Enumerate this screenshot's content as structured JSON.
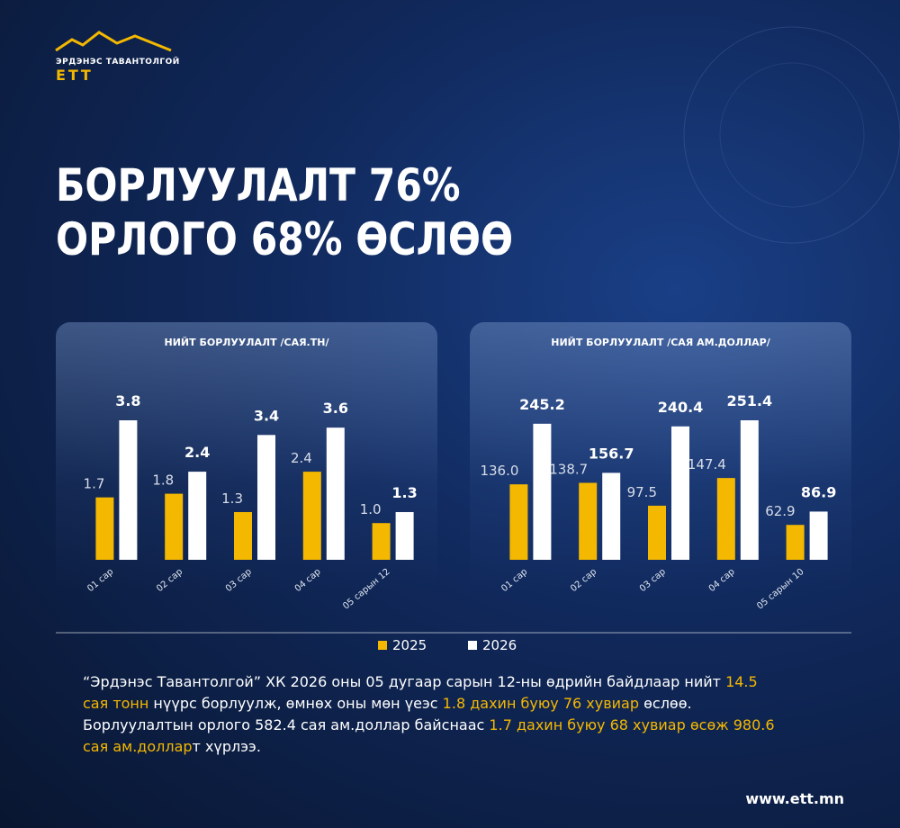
{
  "logo": {
    "name": "ЭРДЭНЭС ТАВАНТОЛГОЙ",
    "mark": "ЕТТ"
  },
  "headline": [
    "БОРЛУУЛАЛТ 76%",
    "ОРЛОГО 68% ӨСЛӨӨ"
  ],
  "chart_data": [
    {
      "type": "bar",
      "title": "НИЙТ БОРЛУУЛАЛТ /САЯ.ТН/",
      "categories": [
        "01 сар",
        "02 сар",
        "03 сар",
        "04 сар",
        "05 сарын 12"
      ],
      "series": [
        {
          "name": "2025",
          "color": "#f5b800",
          "values": [
            1.7,
            1.8,
            1.3,
            2.4,
            1.0
          ],
          "value_labels": [
            "1.7",
            "1.8",
            "1.3",
            "2.4",
            "1.0"
          ]
        },
        {
          "name": "2026",
          "color": "#ffffff",
          "values": [
            3.8,
            2.4,
            3.4,
            3.6,
            1.3
          ],
          "value_labels": [
            "3.8",
            "2.4",
            "3.4",
            "3.6",
            "1.3"
          ]
        }
      ]
    },
    {
      "type": "bar",
      "title": "НИЙТ БОРЛУУЛАЛТ /САЯ АМ.ДОЛЛАР/",
      "categories": [
        "01 сар",
        "02 сар",
        "03 сар",
        "04 сар",
        "05 сарын 10"
      ],
      "series": [
        {
          "name": "2025",
          "color": "#f5b800",
          "values": [
            136.0,
            138.7,
            97.5,
            147.4,
            62.9
          ],
          "value_labels": [
            "136.0",
            "138.7",
            "97.5",
            "147.4",
            "62.9"
          ]
        },
        {
          "name": "2026",
          "color": "#ffffff",
          "values": [
            245.2,
            156.7,
            240.4,
            251.4,
            86.9
          ],
          "value_labels": [
            "245.2",
            "156.7",
            "240.4",
            "251.4",
            "86.9"
          ]
        }
      ]
    }
  ],
  "paragraph": {
    "highlight_color": "#f5b800",
    "segments": [
      {
        "text": "“Эрдэнэс Тавантолгой” ХК 2026 оны 05 дугаар сарын 12-ны өдрийн байдлаар нийт ",
        "highlight": false
      },
      {
        "text": "14.5 сая тонн",
        "highlight": true
      },
      {
        "text": " нүүрс борлуулж, өмнөх оны мөн үеэс ",
        "highlight": false
      },
      {
        "text": "1.8 дахин буюу 76 хувиар",
        "highlight": true
      },
      {
        "text": " өслөө. Борлуулалтын орлого 582.4 сая ам.доллар байснаас ",
        "highlight": false
      },
      {
        "text": "1.7 дахин буюу 68 хувиар өсөж 980.6 сая ам.доллар",
        "highlight": true
      },
      {
        "text": "т хүрлээ.",
        "highlight": false
      }
    ]
  },
  "footer": "www.ett.mn"
}
